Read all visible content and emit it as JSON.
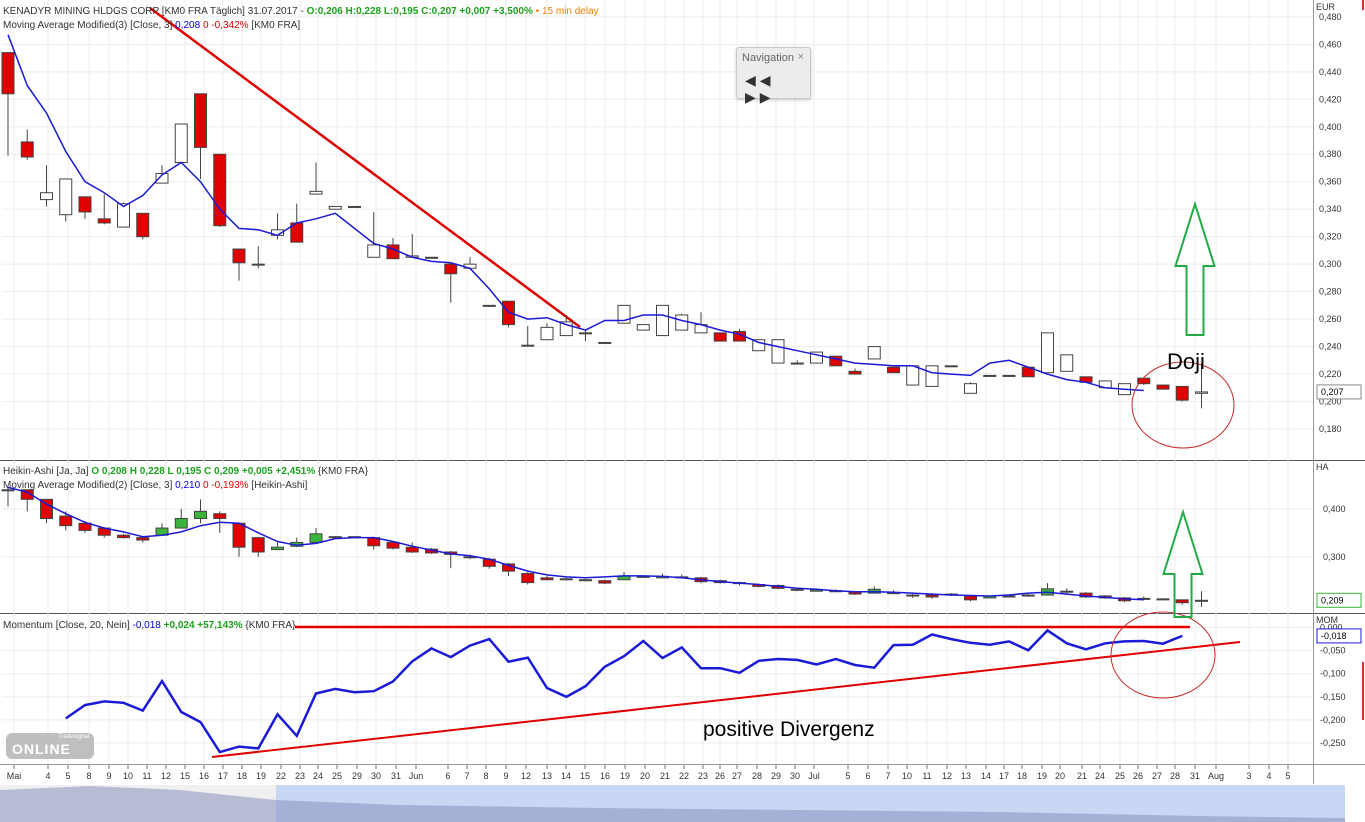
{
  "header_main": {
    "instrument": "KENADYR MINING HLDGS CORP [KM0 FRA Täglich] 31.07.2017 - ",
    "ohlc": "O:0,206 H:0,228 L:0,195 C:0,207 +0,007 +3,500%",
    "delay": "• 15 min delay",
    "ma_label": "Moving Average Modified(3) [Close, 3] ",
    "ma_value": "0,208",
    "ma_change": "0 -0,342%",
    "ma_suffix": " [KM0 FRA]"
  },
  "header_ha": {
    "label": "Heikin-Ashi [Ja, Ja] ",
    "ohlc": "O 0,208 H 0,228 L 0,195 C 0,209 +0,005 +2,451%",
    "suffix": " {KM0 FRA}",
    "ma_label": "Moving Average Modified(2) [Close, 3] ",
    "ma_value": "0,210",
    "ma_change": "0 -0,193%",
    "ma_suffix": " [Heikin-Ashi]"
  },
  "header_mom": {
    "label": "Momentum [Close, 20, Nein] ",
    "value": "-0,018",
    "change": "+0,024 +57,143%",
    "suffix": " {KM0 FRA}"
  },
  "navigation": {
    "title": "Navigation",
    "close": "×",
    "buttons": "◀◀ ▶▶"
  },
  "annotations": {
    "doji": "Doji",
    "divergence": "positive Divergenz"
  },
  "logo": {
    "brand": "Tradesignal",
    "text": "ONLINE"
  },
  "colors": {
    "up": "#ffffff",
    "down": "#e00000",
    "ha_up": "#3cb33c",
    "ma": "#1a1ad8",
    "trend": "#e00000",
    "arrow": "#22aa44",
    "mom": "#1a1ad8"
  },
  "chart_data": [
    {
      "type": "candlestick",
      "panel": "price",
      "currency": "EUR",
      "y_ticks": [
        "0,480",
        "0,460",
        "0,440",
        "0,420",
        "0,400",
        "0,380",
        "0,360",
        "0,340",
        "0,320",
        "0,300",
        "0,280",
        "0,260",
        "0,240",
        "0,220",
        "0,200",
        "0,180"
      ],
      "ylim": [
        0.172,
        0.485
      ],
      "last_value_label": "0,207",
      "candles": [
        [
          0.454,
          0.454,
          0.379,
          0.424
        ],
        [
          0.389,
          0.398,
          0.376,
          0.378
        ],
        [
          0.347,
          0.372,
          0.342,
          0.352
        ],
        [
          0.336,
          0.362,
          0.331,
          0.362
        ],
        [
          0.349,
          0.349,
          0.333,
          0.338
        ],
        [
          0.333,
          0.351,
          0.329,
          0.33
        ],
        [
          0.327,
          0.345,
          0.327,
          0.344
        ],
        [
          0.337,
          0.337,
          0.318,
          0.32
        ],
        [
          0.359,
          0.372,
          0.359,
          0.366
        ],
        [
          0.374,
          0.402,
          0.374,
          0.402
        ],
        [
          0.424,
          0.424,
          0.362,
          0.385
        ],
        [
          0.38,
          0.38,
          0.327,
          0.328
        ],
        [
          0.311,
          0.311,
          0.288,
          0.301
        ],
        [
          0.3,
          0.313,
          0.297,
          0.3
        ],
        [
          0.321,
          0.337,
          0.318,
          0.325
        ],
        [
          0.33,
          0.344,
          0.316,
          0.316
        ],
        [
          0.351,
          0.374,
          0.351,
          0.353
        ],
        [
          0.34,
          0.342,
          0.34,
          0.342
        ],
        [
          0.342,
          0.342,
          0.342,
          0.342
        ],
        [
          0.305,
          0.338,
          0.305,
          0.314
        ],
        [
          0.314,
          0.319,
          0.305,
          0.304
        ],
        [
          0.305,
          0.322,
          0.305,
          0.306
        ],
        [
          0.305,
          0.305,
          0.305,
          0.305
        ],
        [
          0.3,
          0.3,
          0.272,
          0.293
        ],
        [
          0.297,
          0.305,
          0.296,
          0.3
        ],
        [
          0.27,
          0.27,
          0.27,
          0.27
        ],
        [
          0.273,
          0.273,
          0.254,
          0.256
        ],
        [
          0.241,
          0.255,
          0.24,
          0.241
        ],
        [
          0.245,
          0.257,
          0.245,
          0.254
        ],
        [
          0.248,
          0.263,
          0.248,
          0.258
        ],
        [
          0.25,
          0.252,
          0.244,
          0.25
        ],
        [
          0.243,
          0.243,
          0.243,
          0.243
        ],
        [
          0.257,
          0.27,
          0.257,
          0.27
        ],
        [
          0.252,
          0.256,
          0.252,
          0.256
        ],
        [
          0.248,
          0.27,
          0.248,
          0.27
        ],
        [
          0.252,
          0.264,
          0.252,
          0.263
        ],
        [
          0.25,
          0.265,
          0.25,
          0.256
        ],
        [
          0.25,
          0.25,
          0.244,
          0.244
        ],
        [
          0.251,
          0.253,
          0.244,
          0.244
        ],
        [
          0.237,
          0.244,
          0.237,
          0.245
        ],
        [
          0.228,
          0.245,
          0.228,
          0.245
        ],
        [
          0.228,
          0.23,
          0.228,
          0.228
        ],
        [
          0.228,
          0.236,
          0.228,
          0.236
        ],
        [
          0.233,
          0.233,
          0.226,
          0.226
        ],
        [
          0.222,
          0.224,
          0.222,
          0.22
        ],
        [
          0.231,
          0.24,
          0.231,
          0.24
        ],
        [
          0.225,
          0.225,
          0.221,
          0.221
        ],
        [
          0.212,
          0.226,
          0.212,
          0.226
        ],
        [
          0.211,
          0.226,
          0.211,
          0.226
        ],
        [
          0.226,
          0.226,
          0.226,
          0.226
        ],
        [
          0.206,
          0.214,
          0.206,
          0.213
        ],
        [
          0.219,
          0.219,
          0.219,
          0.219
        ],
        [
          0.219,
          0.219,
          0.219,
          0.219
        ],
        [
          0.225,
          0.225,
          0.218,
          0.218
        ],
        [
          0.221,
          0.25,
          0.221,
          0.25
        ],
        [
          0.222,
          0.234,
          0.222,
          0.234
        ],
        [
          0.218,
          0.218,
          0.214,
          0.214
        ],
        [
          0.21,
          0.215,
          0.21,
          0.215
        ],
        [
          0.205,
          0.213,
          0.205,
          0.213
        ],
        [
          0.217,
          0.217,
          0.212,
          0.213
        ],
        [
          0.212,
          0.212,
          0.21,
          0.209
        ],
        [
          0.211,
          0.211,
          0.2,
          0.201
        ],
        [
          0.206,
          0.228,
          0.195,
          0.207
        ]
      ],
      "ma": [
        0.467,
        0.43,
        0.41,
        0.382,
        0.36,
        0.352,
        0.342,
        0.35,
        0.365,
        0.374,
        0.36,
        0.34,
        0.326,
        0.325,
        0.321,
        0.33,
        0.333,
        0.337,
        0.326,
        0.315,
        0.311,
        0.305,
        0.302,
        0.301,
        0.297,
        0.282,
        0.265,
        0.26,
        0.261,
        0.256,
        0.252,
        0.259,
        0.259,
        0.263,
        0.263,
        0.259,
        0.256,
        0.252,
        0.249,
        0.243,
        0.24,
        0.237,
        0.234,
        0.231,
        0.228,
        0.227,
        0.226,
        0.226,
        0.221,
        0.22,
        0.219,
        0.228,
        0.23,
        0.225,
        0.22,
        0.216,
        0.214,
        0.21,
        0.209,
        0.208
      ]
    },
    {
      "type": "candlestick",
      "panel": "heikin-ashi",
      "label": "HA",
      "y_ticks": [
        "0,400",
        "0,300"
      ],
      "ylim": [
        0.195,
        0.45
      ],
      "last_value_label": "0,209",
      "candles": [
        [
          0.44,
          0.445,
          0.405,
          0.44
        ],
        [
          0.44,
          0.44,
          0.395,
          0.42
        ],
        [
          0.42,
          0.42,
          0.37,
          0.38
        ],
        [
          0.385,
          0.395,
          0.355,
          0.365
        ],
        [
          0.37,
          0.375,
          0.35,
          0.355
        ],
        [
          0.36,
          0.362,
          0.34,
          0.345
        ],
        [
          0.345,
          0.348,
          0.338,
          0.34
        ],
        [
          0.34,
          0.343,
          0.33,
          0.335
        ],
        [
          0.345,
          0.37,
          0.345,
          0.36
        ],
        [
          0.36,
          0.4,
          0.36,
          0.38
        ],
        [
          0.38,
          0.42,
          0.37,
          0.395
        ],
        [
          0.39,
          0.395,
          0.35,
          0.38
        ],
        [
          0.37,
          0.372,
          0.3,
          0.32
        ],
        [
          0.34,
          0.342,
          0.3,
          0.31
        ],
        [
          0.315,
          0.33,
          0.315,
          0.32
        ],
        [
          0.322,
          0.34,
          0.32,
          0.33
        ],
        [
          0.33,
          0.36,
          0.33,
          0.348
        ],
        [
          0.34,
          0.343,
          0.34,
          0.342
        ],
        [
          0.342,
          0.342,
          0.342,
          0.342
        ],
        [
          0.34,
          0.342,
          0.315,
          0.323
        ],
        [
          0.33,
          0.332,
          0.315,
          0.318
        ],
        [
          0.32,
          0.33,
          0.308,
          0.31
        ],
        [
          0.316,
          0.318,
          0.306,
          0.308
        ],
        [
          0.31,
          0.312,
          0.276,
          0.305
        ],
        [
          0.3,
          0.305,
          0.295,
          0.298
        ],
        [
          0.295,
          0.298,
          0.275,
          0.28
        ],
        [
          0.285,
          0.287,
          0.26,
          0.27
        ],
        [
          0.265,
          0.268,
          0.242,
          0.246
        ],
        [
          0.256,
          0.26,
          0.25,
          0.252
        ],
        [
          0.254,
          0.258,
          0.25,
          0.253
        ],
        [
          0.252,
          0.254,
          0.249,
          0.251
        ],
        [
          0.25,
          0.252,
          0.243,
          0.245
        ],
        [
          0.252,
          0.268,
          0.252,
          0.26
        ],
        [
          0.258,
          0.26,
          0.256,
          0.259
        ],
        [
          0.256,
          0.265,
          0.255,
          0.259
        ],
        [
          0.258,
          0.263,
          0.255,
          0.258
        ],
        [
          0.256,
          0.258,
          0.245,
          0.248
        ],
        [
          0.25,
          0.252,
          0.244,
          0.246
        ],
        [
          0.246,
          0.248,
          0.24,
          0.244
        ],
        [
          0.242,
          0.244,
          0.236,
          0.238
        ],
        [
          0.24,
          0.242,
          0.232,
          0.234
        ],
        [
          0.232,
          0.234,
          0.228,
          0.23
        ],
        [
          0.228,
          0.234,
          0.228,
          0.231
        ],
        [
          0.229,
          0.232,
          0.226,
          0.228
        ],
        [
          0.226,
          0.228,
          0.22,
          0.222
        ],
        [
          0.224,
          0.238,
          0.224,
          0.232
        ],
        [
          0.225,
          0.23,
          0.222,
          0.224
        ],
        [
          0.22,
          0.224,
          0.214,
          0.218
        ],
        [
          0.22,
          0.224,
          0.212,
          0.216
        ],
        [
          0.22,
          0.224,
          0.218,
          0.222
        ],
        [
          0.218,
          0.22,
          0.207,
          0.21
        ],
        [
          0.214,
          0.219,
          0.214,
          0.218
        ],
        [
          0.216,
          0.219,
          0.215,
          0.218
        ],
        [
          0.218,
          0.222,
          0.216,
          0.22
        ],
        [
          0.22,
          0.245,
          0.22,
          0.233
        ],
        [
          0.228,
          0.234,
          0.222,
          0.226
        ],
        [
          0.224,
          0.226,
          0.214,
          0.216
        ],
        [
          0.218,
          0.22,
          0.212,
          0.214
        ],
        [
          0.214,
          0.216,
          0.205,
          0.208
        ],
        [
          0.213,
          0.217,
          0.21,
          0.212
        ],
        [
          0.212,
          0.213,
          0.209,
          0.21
        ],
        [
          0.21,
          0.211,
          0.2,
          0.204
        ],
        [
          0.208,
          0.228,
          0.195,
          0.209
        ]
      ],
      "ma": [
        0.445,
        0.435,
        0.41,
        0.39,
        0.372,
        0.36,
        0.352,
        0.342,
        0.345,
        0.352,
        0.365,
        0.372,
        0.37,
        0.35,
        0.332,
        0.324,
        0.328,
        0.338,
        0.34,
        0.34,
        0.332,
        0.322,
        0.314,
        0.306,
        0.302,
        0.295,
        0.282,
        0.27,
        0.262,
        0.258,
        0.256,
        0.258,
        0.26,
        0.26,
        0.259,
        0.256,
        0.252,
        0.248,
        0.245,
        0.242,
        0.238,
        0.234,
        0.232,
        0.229,
        0.227,
        0.227,
        0.226,
        0.224,
        0.222,
        0.22,
        0.219,
        0.218,
        0.22,
        0.224,
        0.226,
        0.222,
        0.218,
        0.215,
        0.212,
        0.21
      ]
    },
    {
      "type": "line",
      "panel": "momentum",
      "label": "MOM",
      "y_ticks": [
        "0,000",
        "-0,050",
        "-0,100",
        "-0,150",
        "-0,200",
        "-0,250"
      ],
      "ylim": [
        -0.285,
        0.01
      ],
      "last_value_label": "-0,018",
      "values": [
        -0.197,
        -0.168,
        -0.16,
        -0.163,
        -0.18,
        -0.116,
        -0.183,
        -0.205,
        -0.27,
        -0.258,
        -0.262,
        -0.188,
        -0.235,
        -0.143,
        -0.133,
        -0.14,
        -0.138,
        -0.117,
        -0.073,
        -0.045,
        -0.064,
        -0.039,
        -0.025,
        -0.074,
        -0.065,
        -0.131,
        -0.15,
        -0.127,
        -0.085,
        -0.062,
        -0.029,
        -0.066,
        -0.043,
        -0.088,
        -0.088,
        -0.098,
        -0.072,
        -0.068,
        -0.07,
        -0.08,
        -0.068,
        -0.081,
        -0.087,
        -0.038,
        -0.037,
        -0.015,
        -0.025,
        -0.033,
        -0.037,
        -0.03,
        -0.049,
        -0.006,
        -0.034,
        -0.047,
        -0.034,
        -0.03,
        -0.029,
        -0.035,
        -0.018
      ]
    },
    {
      "type": "axis",
      "panel": "date-axis",
      "x_ticks": [
        "Mai",
        "4",
        "5",
        "8",
        "9",
        "10",
        "11",
        "12",
        "15",
        "16",
        "17",
        "18",
        "19",
        "22",
        "23",
        "24",
        "25",
        "29",
        "30",
        "31",
        "Jun",
        "6",
        "7",
        "8",
        "9",
        "12",
        "13",
        "14",
        "15",
        "16",
        "19",
        "20",
        "21",
        "22",
        "23",
        "26",
        "27",
        "28",
        "29",
        "30",
        "Jul",
        "5",
        "6",
        "7",
        "10",
        "11",
        "12",
        "13",
        "14",
        "17",
        "18",
        "19",
        "20",
        "21",
        "24",
        "25",
        "26",
        "27",
        "28",
        "31",
        "Aug",
        "3",
        "4",
        "5"
      ]
    }
  ]
}
